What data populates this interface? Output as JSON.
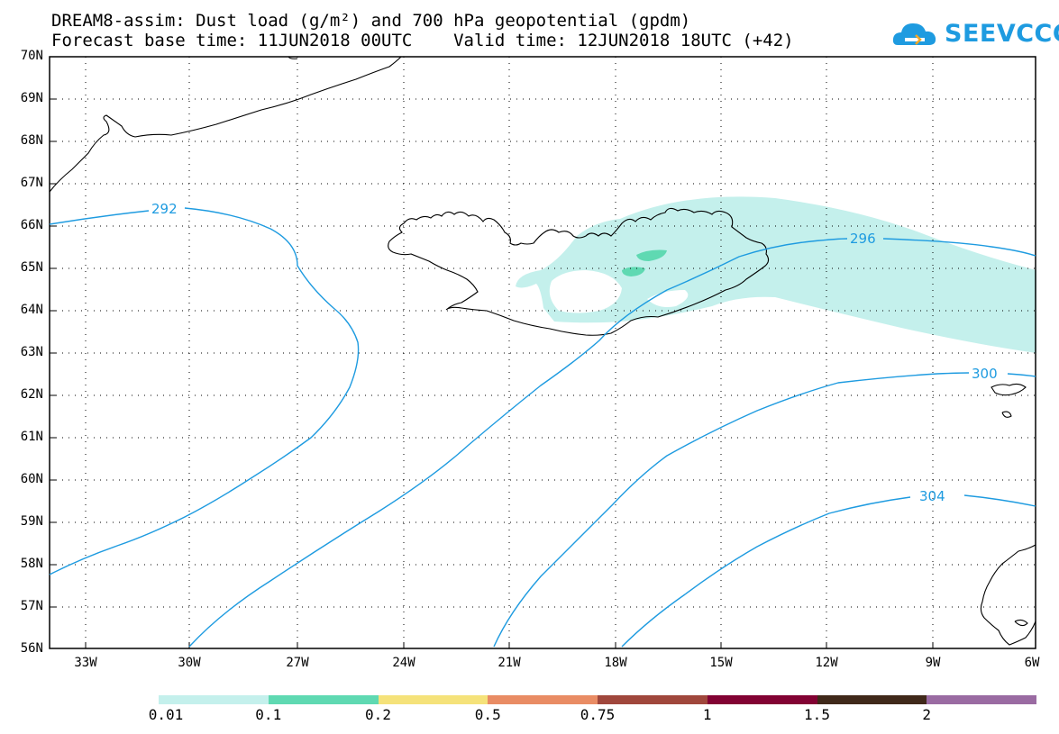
{
  "header": {
    "title_line1": "DREAM8-assim: Dust load (g/m²) and 700 hPa geopotential (gpdm)",
    "title_line2": "Forecast base time: 11JUN2018 00UTC    Valid time: 12JUN2018 18UTC (+42)",
    "logo_text": "SEEVCCC",
    "logo_color": "#1e9be0"
  },
  "map": {
    "lat_labels": [
      "70N",
      "69N",
      "68N",
      "67N",
      "66N",
      "65N",
      "64N",
      "63N",
      "62N",
      "61N",
      "60N",
      "59N",
      "58N",
      "57N",
      "56N"
    ],
    "lon_labels": [
      "33W",
      "30W",
      "27W",
      "24W",
      "21W",
      "18W",
      "15W",
      "12W",
      "9W",
      "6W"
    ],
    "contour_labels": [
      "292",
      "296",
      "300",
      "304"
    ],
    "contour_color": "#1e9be0",
    "dust_colors": {
      "light": "#c4f0ec",
      "medium": "#5fd9b2"
    }
  },
  "colorbar": {
    "labels": [
      "0.01",
      "0.1",
      "0.2",
      "0.5",
      "0.75",
      "1",
      "1.5",
      "2"
    ],
    "colors": [
      "#c4f0ec",
      "#5fd9b2",
      "#f5e27a",
      "#e98c64",
      "#a0473c",
      "#820233",
      "#40291a",
      "#9a6ba2"
    ]
  }
}
